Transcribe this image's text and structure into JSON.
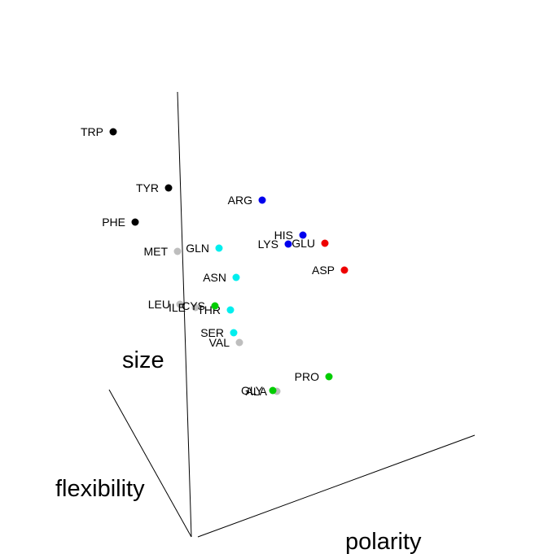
{
  "chart_data": {
    "type": "scatter",
    "title": "",
    "axis_labels": {
      "x": "polarity",
      "y": "flexibility",
      "z": "size"
    },
    "colors": {
      "aromatic": "#000000",
      "basic": "#0000ee",
      "acidic": "#ee0000",
      "polar": "#00eeee",
      "hydrophobic": "#bebebe",
      "special": "#00cd00"
    },
    "points": [
      {
        "label": "TRP",
        "group": "aromatic"
      },
      {
        "label": "TYR",
        "group": "aromatic"
      },
      {
        "label": "PHE",
        "group": "aromatic"
      },
      {
        "label": "ARG",
        "group": "basic"
      },
      {
        "label": "HIS",
        "group": "basic"
      },
      {
        "label": "LYS",
        "group": "basic"
      },
      {
        "label": "GLU",
        "group": "acidic"
      },
      {
        "label": "ASP",
        "group": "acidic"
      },
      {
        "label": "GLN",
        "group": "polar"
      },
      {
        "label": "ASN",
        "group": "polar"
      },
      {
        "label": "THR",
        "group": "polar"
      },
      {
        "label": "SER",
        "group": "polar"
      },
      {
        "label": "MET",
        "group": "hydrophobic"
      },
      {
        "label": "LEU",
        "group": "hydrophobic"
      },
      {
        "label": "ILE",
        "group": "hydrophobic"
      },
      {
        "label": "VAL",
        "group": "hydrophobic"
      },
      {
        "label": "ALA",
        "group": "hydrophobic"
      },
      {
        "label": "CYS",
        "group": "special"
      },
      {
        "label": "PRO",
        "group": "special"
      },
      {
        "label": "GLY",
        "group": "special"
      }
    ]
  }
}
